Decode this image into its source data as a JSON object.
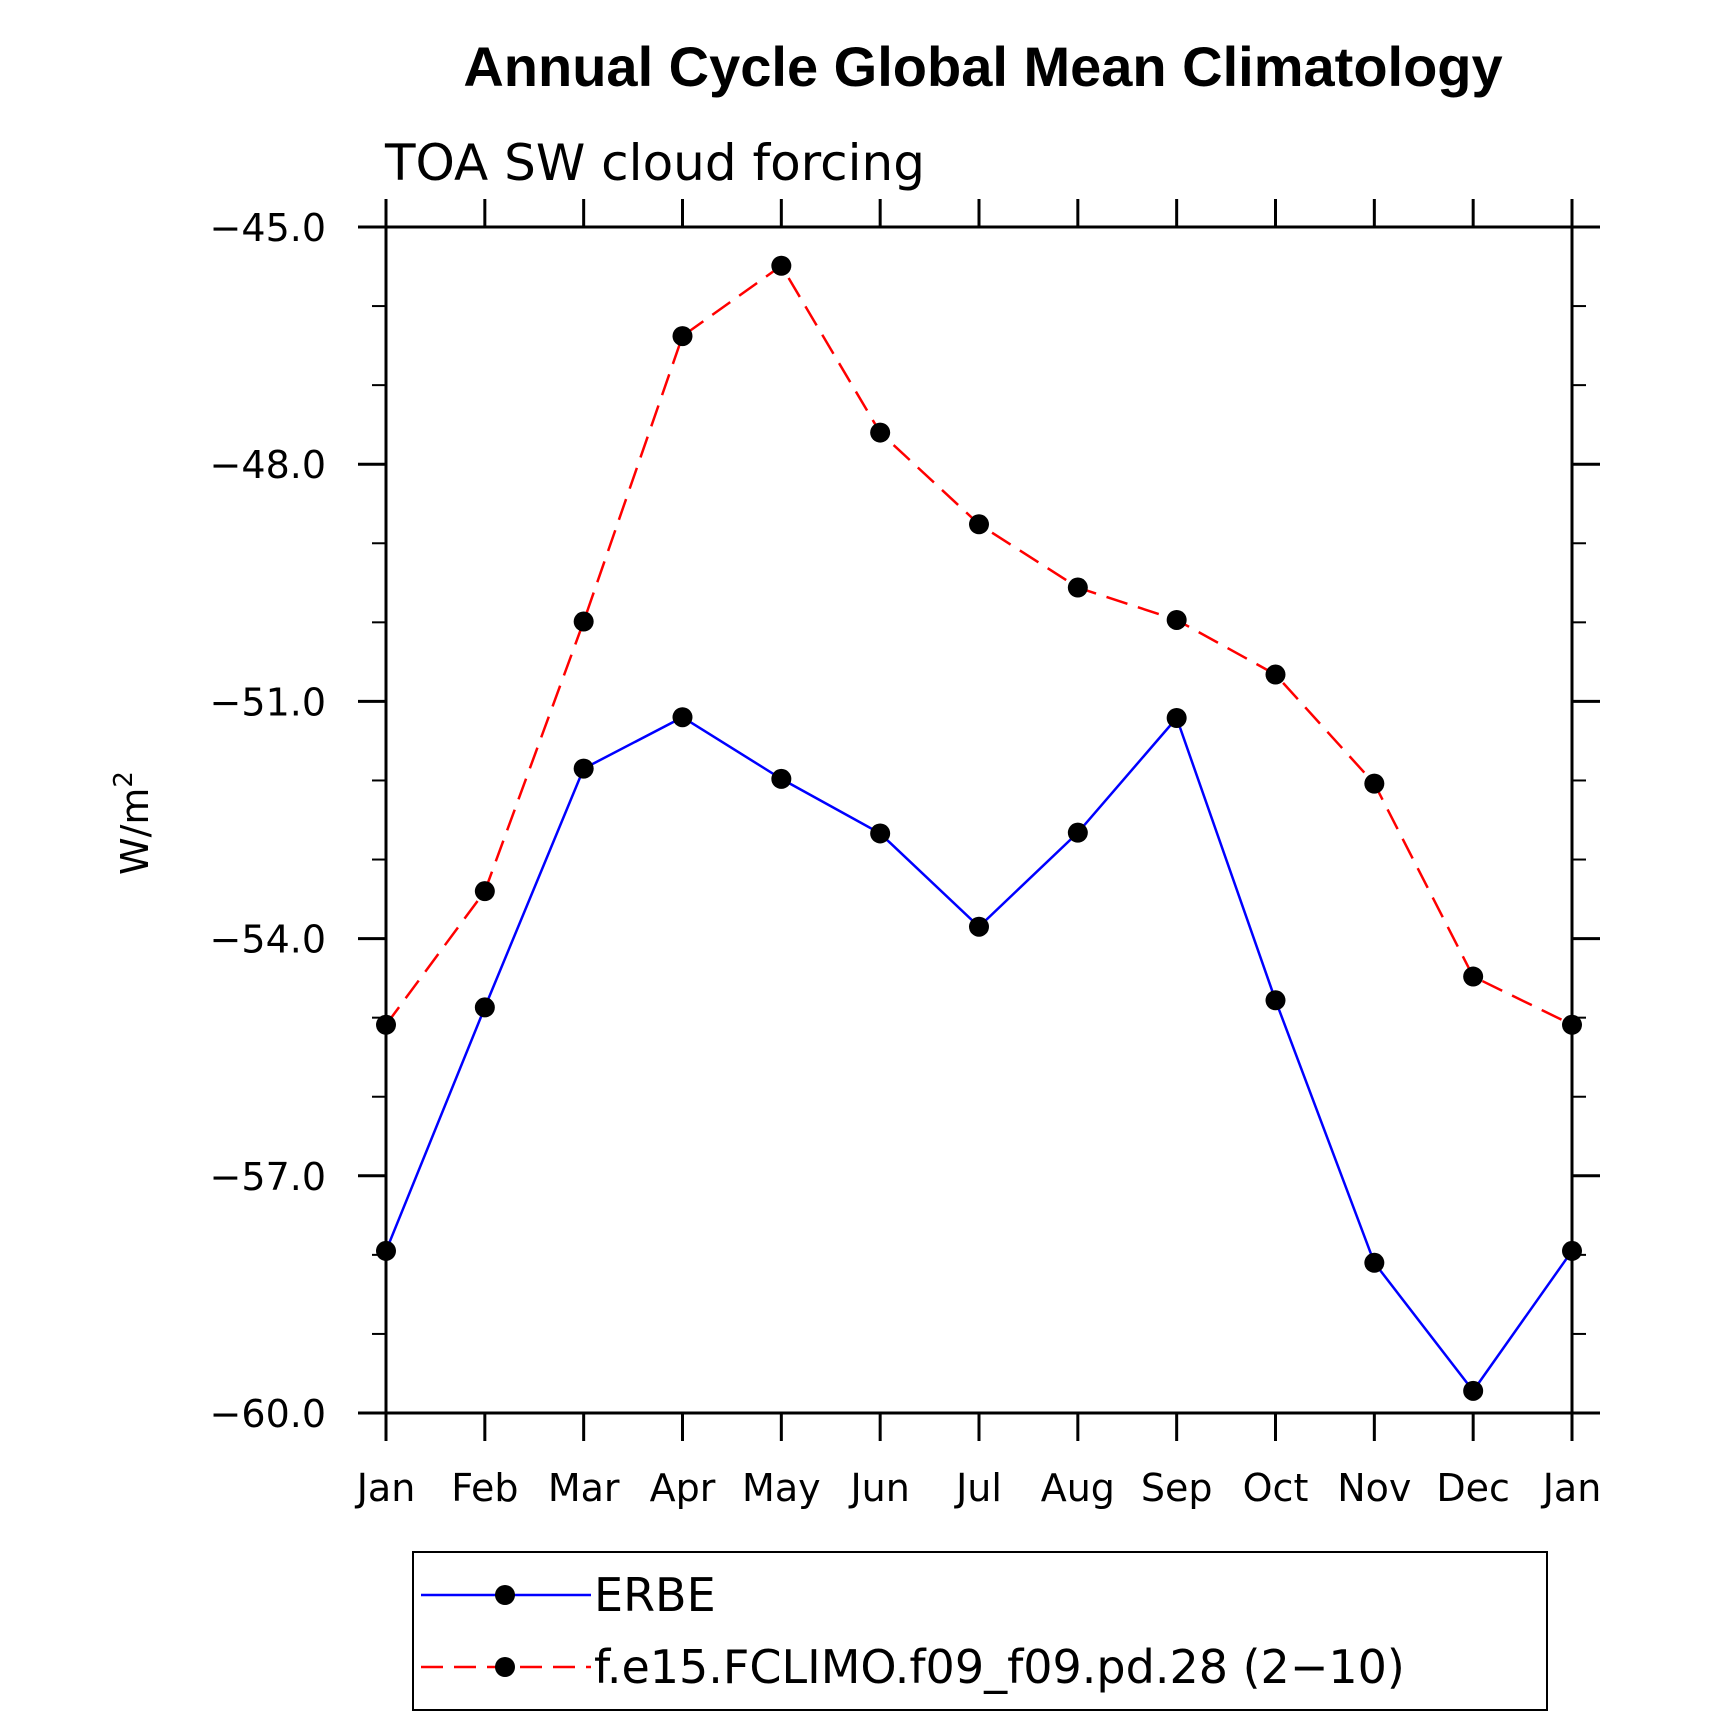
{
  "chart_data": {
    "type": "line",
    "title": "Annual Cycle Global Mean Climatology",
    "subtitle": "TOA SW cloud forcing",
    "ylabel_base": "W/m",
    "ylabel_sup": "2",
    "categories": [
      "Jan",
      "Feb",
      "Mar",
      "Apr",
      "May",
      "Jun",
      "Jul",
      "Aug",
      "Sep",
      "Oct",
      "Nov",
      "Dec",
      "Jan"
    ],
    "ylim": [
      -60.0,
      -45.0
    ],
    "yticks": [
      -45.0,
      -48.0,
      -51.0,
      -54.0,
      -57.0
    ],
    "ytick_labels": [
      "−45.0",
      "−48.0",
      "−51.0",
      "−54.0",
      "−57.0",
      "−60.0"
    ],
    "ytick_values": [
      -45.0,
      -48.0,
      -51.0,
      -54.0,
      -57.0,
      -60.0
    ],
    "minor_step": 1.0,
    "legend_position": "bottom",
    "series": [
      {
        "name": "ERBE",
        "color": "#0000ff",
        "dash": "solid",
        "values": [
          -57.95,
          -54.87,
          -51.85,
          -51.2,
          -51.98,
          -52.67,
          -53.85,
          -52.66,
          -51.21,
          -54.78,
          -58.1,
          -59.72,
          -57.95
        ]
      },
      {
        "name": "f.e15.FCLIMO.f09_f09.pd.28 (2−10)",
        "color": "#ff0000",
        "dash": "dashed",
        "values": [
          -55.09,
          -53.4,
          -49.99,
          -46.38,
          -45.49,
          -47.6,
          -48.76,
          -49.56,
          -49.97,
          -50.66,
          -52.04,
          -54.48,
          -55.09
        ]
      }
    ],
    "marker_color": "#000000"
  }
}
